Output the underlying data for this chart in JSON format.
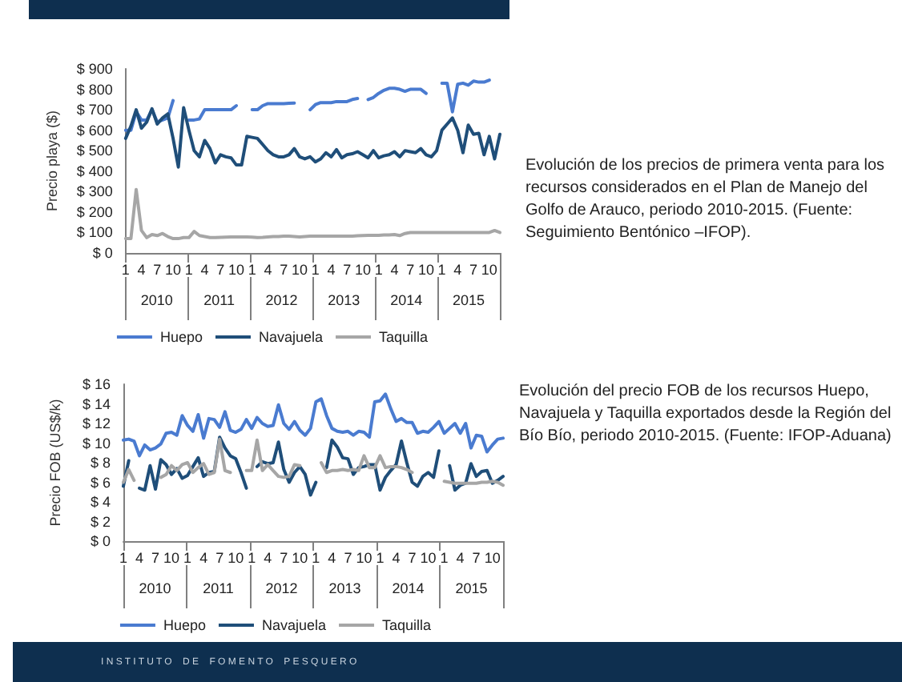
{
  "chart_data": [
    {
      "type": "line",
      "ylabel": "Precio playa ($)",
      "legend": "bottom",
      "grid": false,
      "marker": "none",
      "line_style": "solid",
      "categories": [
        "1",
        null,
        null,
        "4",
        null,
        null,
        "7",
        null,
        null,
        "10",
        null,
        null,
        "1",
        null,
        null,
        "4",
        null,
        null,
        "7",
        null,
        null,
        "10",
        null,
        null,
        "1",
        null,
        null,
        "4",
        null,
        null,
        "7",
        null,
        null,
        "10",
        null,
        null,
        "1",
        null,
        null,
        "4",
        null,
        null,
        "7",
        null,
        null,
        "10",
        null,
        null,
        "1",
        null,
        null,
        "4",
        null,
        null,
        "7",
        null,
        null,
        "10",
        null,
        null,
        "1",
        null,
        null,
        "4",
        null,
        null,
        "7",
        null,
        null,
        "10",
        null,
        null
      ],
      "ylim": [
        0,
        900
      ],
      "yticks": [
        {
          "value": 0,
          "label": "$ 0"
        },
        {
          "value": 100,
          "label": "$ 100"
        },
        {
          "value": 200,
          "label": "$ 200"
        },
        {
          "value": 300,
          "label": "$ 300"
        },
        {
          "value": 400,
          "label": "$ 400"
        },
        {
          "value": 500,
          "label": "$ 500"
        },
        {
          "value": 600,
          "label": "$ 600"
        },
        {
          "value": 700,
          "label": "$ 700"
        },
        {
          "value": 800,
          "label": "$ 800"
        },
        {
          "value": 900,
          "label": "$ 900"
        }
      ],
      "series": [
        {
          "name": "Huepo",
          "color": "#4a7bd0",
          "values": [
            600,
            600,
            690,
            650,
            650,
            700,
            640,
            650,
            660,
            745,
            null,
            null,
            650,
            650,
            655,
            700,
            700,
            700,
            700,
            700,
            700,
            720,
            null,
            null,
            700,
            700,
            720,
            730,
            730,
            730,
            730,
            732,
            733,
            null,
            null,
            700,
            725,
            735,
            735,
            735,
            740,
            740,
            740,
            750,
            755,
            null,
            750,
            760,
            780,
            795,
            805,
            805,
            800,
            790,
            800,
            800,
            800,
            780,
            null,
            null,
            830,
            830,
            690,
            825,
            830,
            820,
            840,
            835,
            835,
            845,
            null,
            null
          ]
        },
        {
          "name": "Navajuela",
          "color": "#1f4e79",
          "values": [
            560,
            620,
            700,
            610,
            640,
            705,
            630,
            660,
            680,
            560,
            420,
            710,
            600,
            500,
            470,
            550,
            510,
            440,
            480,
            470,
            465,
            430,
            430,
            570,
            565,
            560,
            530,
            500,
            480,
            470,
            470,
            480,
            510,
            470,
            460,
            470,
            445,
            460,
            490,
            470,
            505,
            465,
            480,
            485,
            495,
            480,
            465,
            500,
            465,
            475,
            480,
            495,
            470,
            500,
            495,
            490,
            510,
            480,
            470,
            500,
            600,
            630,
            660,
            600,
            490,
            625,
            580,
            585,
            480,
            570,
            460,
            580
          ]
        },
        {
          "name": "Taquilla",
          "color": "#a6a6a6",
          "values": [
            70,
            70,
            310,
            110,
            75,
            90,
            85,
            95,
            80,
            70,
            70,
            75,
            75,
            105,
            85,
            80,
            75,
            75,
            76,
            77,
            78,
            78,
            78,
            78,
            77,
            75,
            76,
            78,
            80,
            80,
            82,
            82,
            80,
            78,
            80,
            82,
            82,
            82,
            82,
            82,
            82,
            82,
            82,
            82,
            84,
            85,
            86,
            86,
            86,
            88,
            88,
            90,
            85,
            95,
            100,
            100,
            100,
            100,
            100,
            100,
            100,
            100,
            100,
            100,
            100,
            100,
            100,
            100,
            100,
            100,
            110,
            100
          ]
        }
      ],
      "annotations": [
        "Evolución de los precios de primera venta para los recursos considerados en el Plan de Manejo del Golfo de Arauco, periodo 2010-2015. (Fuente: Seguimiento Bentónico –IFOP).",
        "2010",
        "2011",
        "2012",
        "2013",
        "2014",
        "2015"
      ]
    },
    {
      "type": "line",
      "ylabel": "Precio FOB (US$/k)",
      "legend": "bottom",
      "grid": false,
      "marker": "none",
      "line_style": "solid",
      "categories": [
        "1",
        null,
        null,
        "4",
        null,
        null,
        "7",
        null,
        null,
        "10",
        null,
        null,
        "1",
        null,
        null,
        "4",
        null,
        null,
        "7",
        null,
        null,
        "10",
        null,
        null,
        "1",
        null,
        null,
        "4",
        null,
        null,
        "7",
        null,
        null,
        "10",
        null,
        null,
        "1",
        null,
        null,
        "4",
        null,
        null,
        "7",
        null,
        null,
        "10",
        null,
        null,
        "1",
        null,
        null,
        "4",
        null,
        null,
        "7",
        null,
        null,
        "10",
        null,
        null,
        "1",
        null,
        null,
        "4",
        null,
        null,
        "7",
        null,
        null,
        "10",
        null,
        null
      ],
      "ylim": [
        0,
        16
      ],
      "yticks": [
        {
          "value": 0,
          "label": "$ 0"
        },
        {
          "value": 2,
          "label": "$ 2"
        },
        {
          "value": 4,
          "label": "$ 4"
        },
        {
          "value": 6,
          "label": "$ 6"
        },
        {
          "value": 8,
          "label": "$ 8"
        },
        {
          "value": 10,
          "label": "$ 10"
        },
        {
          "value": 12,
          "label": "$ 12"
        },
        {
          "value": 14,
          "label": "$ 14"
        },
        {
          "value": 16,
          "label": "$ 16"
        }
      ],
      "series": [
        {
          "name": "Huepo",
          "color": "#4a7bd0",
          "values": [
            10.3,
            10.4,
            10.2,
            8.7,
            9.8,
            9.3,
            9.5,
            9.9,
            11,
            11.1,
            10.8,
            12.8,
            11.8,
            11.2,
            12.9,
            10.5,
            12.5,
            12.4,
            11.6,
            13.2,
            11.3,
            11.1,
            11.4,
            12.4,
            11.5,
            12.6,
            12,
            11.7,
            11.8,
            13.9,
            12,
            11.4,
            12.2,
            11.3,
            10.8,
            11.5,
            14.2,
            14.5,
            12.8,
            11.5,
            11.2,
            11.1,
            11.2,
            10.8,
            11.2,
            11.1,
            10.6,
            14.2,
            14.3,
            15,
            13.5,
            12.2,
            12.5,
            12.1,
            12.1,
            11,
            11.2,
            11.1,
            11.6,
            12.2,
            11,
            11.5,
            12,
            11,
            12,
            9.5,
            10.8,
            10.7,
            9.1,
            9.8,
            10.4,
            10.5
          ]
        },
        {
          "name": "Navajuela",
          "color": "#1f4e79",
          "values": [
            5.6,
            8.2,
            null,
            5.4,
            5.2,
            7.7,
            5.3,
            8.3,
            7.8,
            6.8,
            7.4,
            6.4,
            6.7,
            7.6,
            8.5,
            6.6,
            7,
            7.1,
            10.6,
            9.5,
            8.7,
            8.4,
            7,
            5.4,
            null,
            7.6,
            8.1,
            7.9,
            8,
            10.1,
            7.3,
            6,
            7,
            7.6,
            6.8,
            4.7,
            6,
            null,
            7.5,
            10.3,
            9.6,
            8.5,
            8.4,
            6.8,
            7.5,
            7.6,
            7.8,
            7.8,
            5.2,
            6.5,
            7.2,
            7.8,
            10.2,
            8,
            6,
            5.6,
            6.6,
            7,
            6.5,
            9.2,
            null,
            7.7,
            5.2,
            5.7,
            5.9,
            7.9,
            6.6,
            7.1,
            7.2,
            5.9,
            6.2,
            6.6
          ]
        },
        {
          "name": "Taquilla",
          "color": "#a6a6a6",
          "values": [
            6,
            7.3,
            6.2,
            null,
            null,
            null,
            null,
            6.5,
            6.8,
            7.7,
            7.2,
            7.8,
            8,
            7,
            7.5,
            7.9,
            6.8,
            7,
            10.4,
            7.2,
            7,
            null,
            null,
            7.2,
            7.2,
            10.3,
            7.2,
            7.8,
            7.2,
            6.6,
            6.5,
            6.6,
            7.8,
            7.7,
            null,
            null,
            null,
            8,
            7,
            7.2,
            7.2,
            7.3,
            7.2,
            7.3,
            7.2,
            8.7,
            7.5,
            7.5,
            8.7,
            7.5,
            7.6,
            7.6,
            7.5,
            7.3,
            7,
            null,
            null,
            null,
            null,
            null,
            6.1,
            6,
            5.9,
            5.9,
            5.9,
            5.9,
            5.9,
            6,
            6,
            6.1,
            6,
            5.7
          ]
        }
      ],
      "annotations": [
        "Evolución del precio FOB de los recursos Huepo, Navajuela y Taquilla exportados desde la Región del Bío Bío, periodo 2010-2015. (Fuente: IFOP-Aduana)",
        "2010",
        "2011",
        "2012",
        "2013",
        "2014",
        "2015",
        "I N S T I T U T O    D E    F O M E N T O    P E S Q U E R O"
      ]
    }
  ]
}
